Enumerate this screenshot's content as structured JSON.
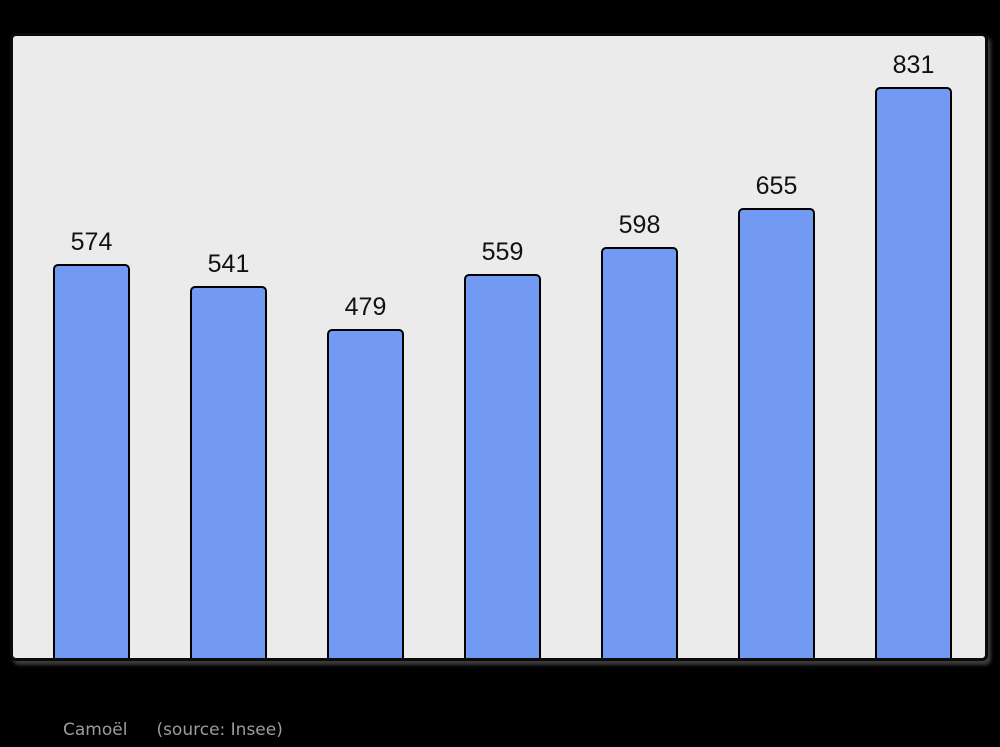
{
  "canvas": {
    "background": "#000000"
  },
  "chart_data": {
    "type": "bar",
    "values": [
      574,
      541,
      479,
      559,
      598,
      655,
      831
    ],
    "data_labels": [
      "574",
      "541",
      "479",
      "559",
      "598",
      "655",
      "831"
    ],
    "title": "",
    "xlabel": "",
    "ylabel": "",
    "ylim": [
      0,
      911
    ],
    "x_tick_labels_visible": false,
    "grid": false,
    "legend": false,
    "bar_color": "#739af2",
    "bar_border_color": "#000000",
    "plot_bg": "#ebebeb",
    "label_color": "#111111"
  },
  "caption": {
    "commune": "Camoël",
    "source": "(source: Insee)",
    "color": "#9c9c9c"
  }
}
